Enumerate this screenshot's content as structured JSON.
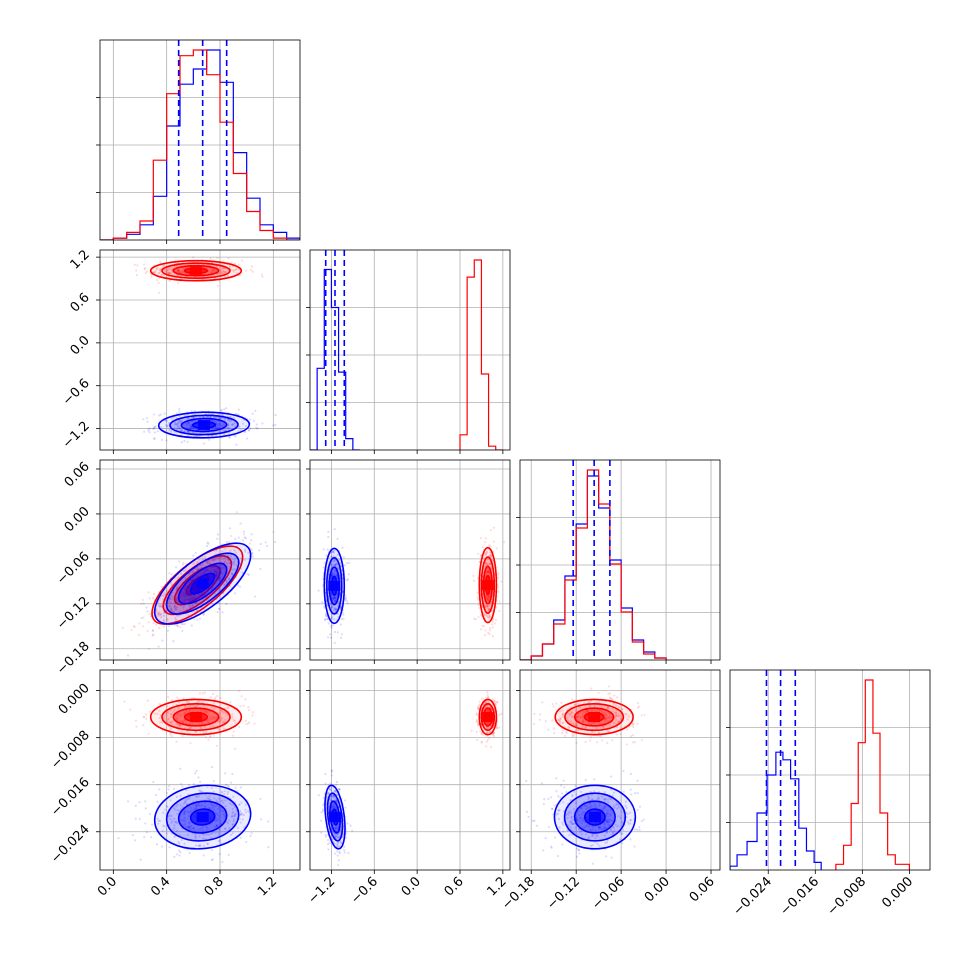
{
  "chart_data": {
    "type": "corner",
    "series": [
      {
        "name": "",
        "color": "#0000ff"
      },
      {
        "name": "",
        "color": "#ff0000"
      }
    ],
    "params": [
      {
        "range": [
          -0.1,
          1.4
        ],
        "ticks": [
          0.0,
          0.4,
          0.8,
          1.2
        ],
        "tick_labels": [
          "0.0",
          "0.4",
          "0.8",
          "1.2"
        ]
      },
      {
        "range": [
          -1.5,
          1.3
        ],
        "ticks": [
          -1.2,
          -0.6,
          0.0,
          0.6,
          1.2
        ],
        "tick_labels": [
          "−1.2",
          "−0.6",
          "0.0",
          "0.6",
          "1.2"
        ]
      },
      {
        "range": [
          -0.195,
          0.072
        ],
        "ticks": [
          -0.18,
          -0.12,
          -0.06,
          0.0,
          0.06
        ],
        "tick_labels": [
          "−0.18",
          "−0.12",
          "−0.06",
          "0.00",
          "0.06"
        ]
      },
      {
        "range": [
          -0.0305,
          0.0035
        ],
        "ticks": [
          -0.024,
          -0.016,
          -0.008,
          0.0
        ],
        "tick_labels": [
          "−0.024",
          "−0.016",
          "−0.008",
          "0.000"
        ]
      }
    ],
    "quantile_lines": [
      [
        0.49,
        0.67,
        0.85
      ],
      [
        -1.28,
        -1.15,
        -1.02
      ],
      [
        -0.124,
        -0.096,
        -0.075
      ],
      [
        -0.0243,
        -0.0219,
        -0.0194
      ]
    ],
    "histograms": [
      {
        "blue": [
          [
            -0.1,
            0.0,
            0.0
          ],
          [
            0.0,
            0.1,
            0.01
          ],
          [
            0.1,
            0.2,
            0.03
          ],
          [
            0.2,
            0.3,
            0.08
          ],
          [
            0.3,
            0.4,
            0.23
          ],
          [
            0.4,
            0.5,
            0.6
          ],
          [
            0.5,
            0.6,
            0.82
          ],
          [
            0.6,
            0.7,
            0.9
          ],
          [
            0.7,
            0.8,
            1.0
          ],
          [
            0.8,
            0.9,
            0.83
          ],
          [
            0.9,
            1.0,
            0.46
          ],
          [
            1.0,
            1.1,
            0.22
          ],
          [
            1.1,
            1.2,
            0.08
          ],
          [
            1.2,
            1.3,
            0.04
          ],
          [
            1.3,
            1.4,
            0.01
          ]
        ],
        "red": [
          [
            -0.1,
            0.0,
            0.0
          ],
          [
            0.0,
            0.1,
            0.01
          ],
          [
            0.1,
            0.2,
            0.04
          ],
          [
            0.2,
            0.3,
            0.1
          ],
          [
            0.3,
            0.4,
            0.42
          ],
          [
            0.4,
            0.5,
            0.77
          ],
          [
            0.5,
            0.6,
            0.97
          ],
          [
            0.6,
            0.7,
            1.0
          ],
          [
            0.7,
            0.8,
            0.87
          ],
          [
            0.8,
            0.9,
            0.62
          ],
          [
            0.9,
            1.0,
            0.35
          ],
          [
            1.0,
            1.1,
            0.15
          ],
          [
            1.1,
            1.2,
            0.05
          ],
          [
            1.2,
            1.3,
            0.01
          ],
          [
            1.3,
            1.4,
            0.0
          ]
        ]
      },
      {
        "blue": [
          [
            -1.5,
            -1.4,
            0.0
          ],
          [
            -1.4,
            -1.3,
            0.43
          ],
          [
            -1.3,
            -1.2,
            0.95
          ],
          [
            -1.2,
            -1.1,
            0.75
          ],
          [
            -1.1,
            -1.0,
            0.41
          ],
          [
            -1.0,
            -0.9,
            0.06
          ],
          [
            -0.9,
            -0.8,
            0.0
          ]
        ],
        "red": [
          [
            0.6,
            0.7,
            0.08
          ],
          [
            0.7,
            0.8,
            0.91
          ],
          [
            0.8,
            0.9,
            1.0
          ],
          [
            0.9,
            1.0,
            0.4
          ],
          [
            1.0,
            1.1,
            0.02
          ],
          [
            1.1,
            1.2,
            0.0
          ]
        ]
      },
      {
        "blue": [
          [
            -0.195,
            -0.18,
            0.0
          ],
          [
            -0.18,
            -0.165,
            0.02
          ],
          [
            -0.165,
            -0.15,
            0.08
          ],
          [
            -0.15,
            -0.135,
            0.2
          ],
          [
            -0.135,
            -0.12,
            0.42
          ],
          [
            -0.12,
            -0.105,
            0.68
          ],
          [
            -0.105,
            -0.09,
            0.92
          ],
          [
            -0.09,
            -0.075,
            0.76
          ],
          [
            -0.075,
            -0.06,
            0.5
          ],
          [
            -0.06,
            -0.045,
            0.26
          ],
          [
            -0.045,
            -0.03,
            0.1
          ],
          [
            -0.03,
            -0.015,
            0.04
          ],
          [
            -0.015,
            0.0,
            0.01
          ]
        ],
        "red": [
          [
            -0.195,
            -0.18,
            0.0
          ],
          [
            -0.18,
            -0.165,
            0.02
          ],
          [
            -0.165,
            -0.15,
            0.08
          ],
          [
            -0.15,
            -0.135,
            0.18
          ],
          [
            -0.135,
            -0.12,
            0.4
          ],
          [
            -0.12,
            -0.105,
            0.66
          ],
          [
            -0.105,
            -0.09,
            0.95
          ],
          [
            -0.09,
            -0.075,
            0.78
          ],
          [
            -0.075,
            -0.06,
            0.48
          ],
          [
            -0.06,
            -0.045,
            0.24
          ],
          [
            -0.045,
            -0.03,
            0.09
          ],
          [
            -0.03,
            -0.015,
            0.03
          ],
          [
            -0.015,
            0.0,
            0.01
          ]
        ]
      },
      {
        "blue": [
          [
            -0.0305,
            -0.0293,
            0.02
          ],
          [
            -0.0293,
            -0.0276,
            0.08
          ],
          [
            -0.0276,
            -0.0259,
            0.15
          ],
          [
            -0.0259,
            -0.0242,
            0.3
          ],
          [
            -0.0242,
            -0.0227,
            0.5
          ],
          [
            -0.0227,
            -0.0215,
            0.62
          ],
          [
            -0.0215,
            -0.0202,
            0.58
          ],
          [
            -0.0202,
            -0.0188,
            0.48
          ],
          [
            -0.0188,
            -0.0175,
            0.22
          ],
          [
            -0.0175,
            -0.0162,
            0.1
          ],
          [
            -0.0162,
            -0.015,
            0.04
          ]
        ],
        "red": [
          [
            -0.0125,
            -0.0112,
            0.03
          ],
          [
            -0.0112,
            -0.0099,
            0.13
          ],
          [
            -0.0099,
            -0.0087,
            0.35
          ],
          [
            -0.0087,
            -0.0075,
            0.67
          ],
          [
            -0.0075,
            -0.0062,
            1.0
          ],
          [
            -0.0062,
            -0.005,
            0.72
          ],
          [
            -0.005,
            -0.0037,
            0.3
          ],
          [
            -0.0037,
            -0.0024,
            0.08
          ],
          [
            -0.0024,
            0.0,
            0.03
          ]
        ]
      }
    ],
    "blobs": [
      {
        "pair": [
          1,
          0
        ],
        "series": "red",
        "center": [
          0.62,
          1.01
        ],
        "sd": [
          0.17,
          0.07
        ],
        "rho": 0.0
      },
      {
        "pair": [
          1,
          0
        ],
        "series": "blue",
        "center": [
          0.68,
          -1.15
        ],
        "sd": [
          0.17,
          0.09
        ],
        "rho": 0.05
      },
      {
        "pair": [
          2,
          0
        ],
        "series": "red",
        "center": [
          0.63,
          -0.095
        ],
        "sd": [
          0.17,
          0.026
        ],
        "rho": 0.72
      },
      {
        "pair": [
          2,
          0
        ],
        "series": "blue",
        "center": [
          0.67,
          -0.093
        ],
        "sd": [
          0.18,
          0.027
        ],
        "rho": 0.7
      },
      {
        "pair": [
          2,
          1
        ],
        "series": "blue",
        "center": [
          -1.16,
          -0.096
        ],
        "sd": [
          0.07,
          0.025
        ],
        "rho": 0.0
      },
      {
        "pair": [
          2,
          1
        ],
        "series": "red",
        "center": [
          0.99,
          -0.095
        ],
        "sd": [
          0.06,
          0.025
        ],
        "rho": 0.0
      },
      {
        "pair": [
          3,
          0
        ],
        "series": "red",
        "center": [
          0.62,
          -0.0045
        ],
        "sd": [
          0.17,
          0.0015
        ],
        "rho": 0.0
      },
      {
        "pair": [
          3,
          0
        ],
        "series": "blue",
        "center": [
          0.67,
          -0.0215
        ],
        "sd": [
          0.18,
          0.0027
        ],
        "rho": 0.1
      },
      {
        "pair": [
          3,
          1
        ],
        "series": "red",
        "center": [
          0.99,
          -0.0045
        ],
        "sd": [
          0.06,
          0.0015
        ],
        "rho": 0.0
      },
      {
        "pair": [
          3,
          1
        ],
        "series": "blue",
        "center": [
          -1.15,
          -0.0215
        ],
        "sd": [
          0.07,
          0.0027
        ],
        "rho": -0.35
      },
      {
        "pair": [
          3,
          2
        ],
        "series": "red",
        "center": [
          -0.096,
          -0.0045
        ],
        "sd": [
          0.026,
          0.0015
        ],
        "rho": 0.0
      },
      {
        "pair": [
          3,
          2
        ],
        "series": "blue",
        "center": [
          -0.095,
          -0.0215
        ],
        "sd": [
          0.027,
          0.0027
        ],
        "rho": 0.0
      }
    ],
    "contour_levels_sigma": [
      0.5,
      1.0,
      1.5,
      2.0
    ],
    "grid": true,
    "xlabel": "",
    "ylabel": "",
    "title": ""
  }
}
